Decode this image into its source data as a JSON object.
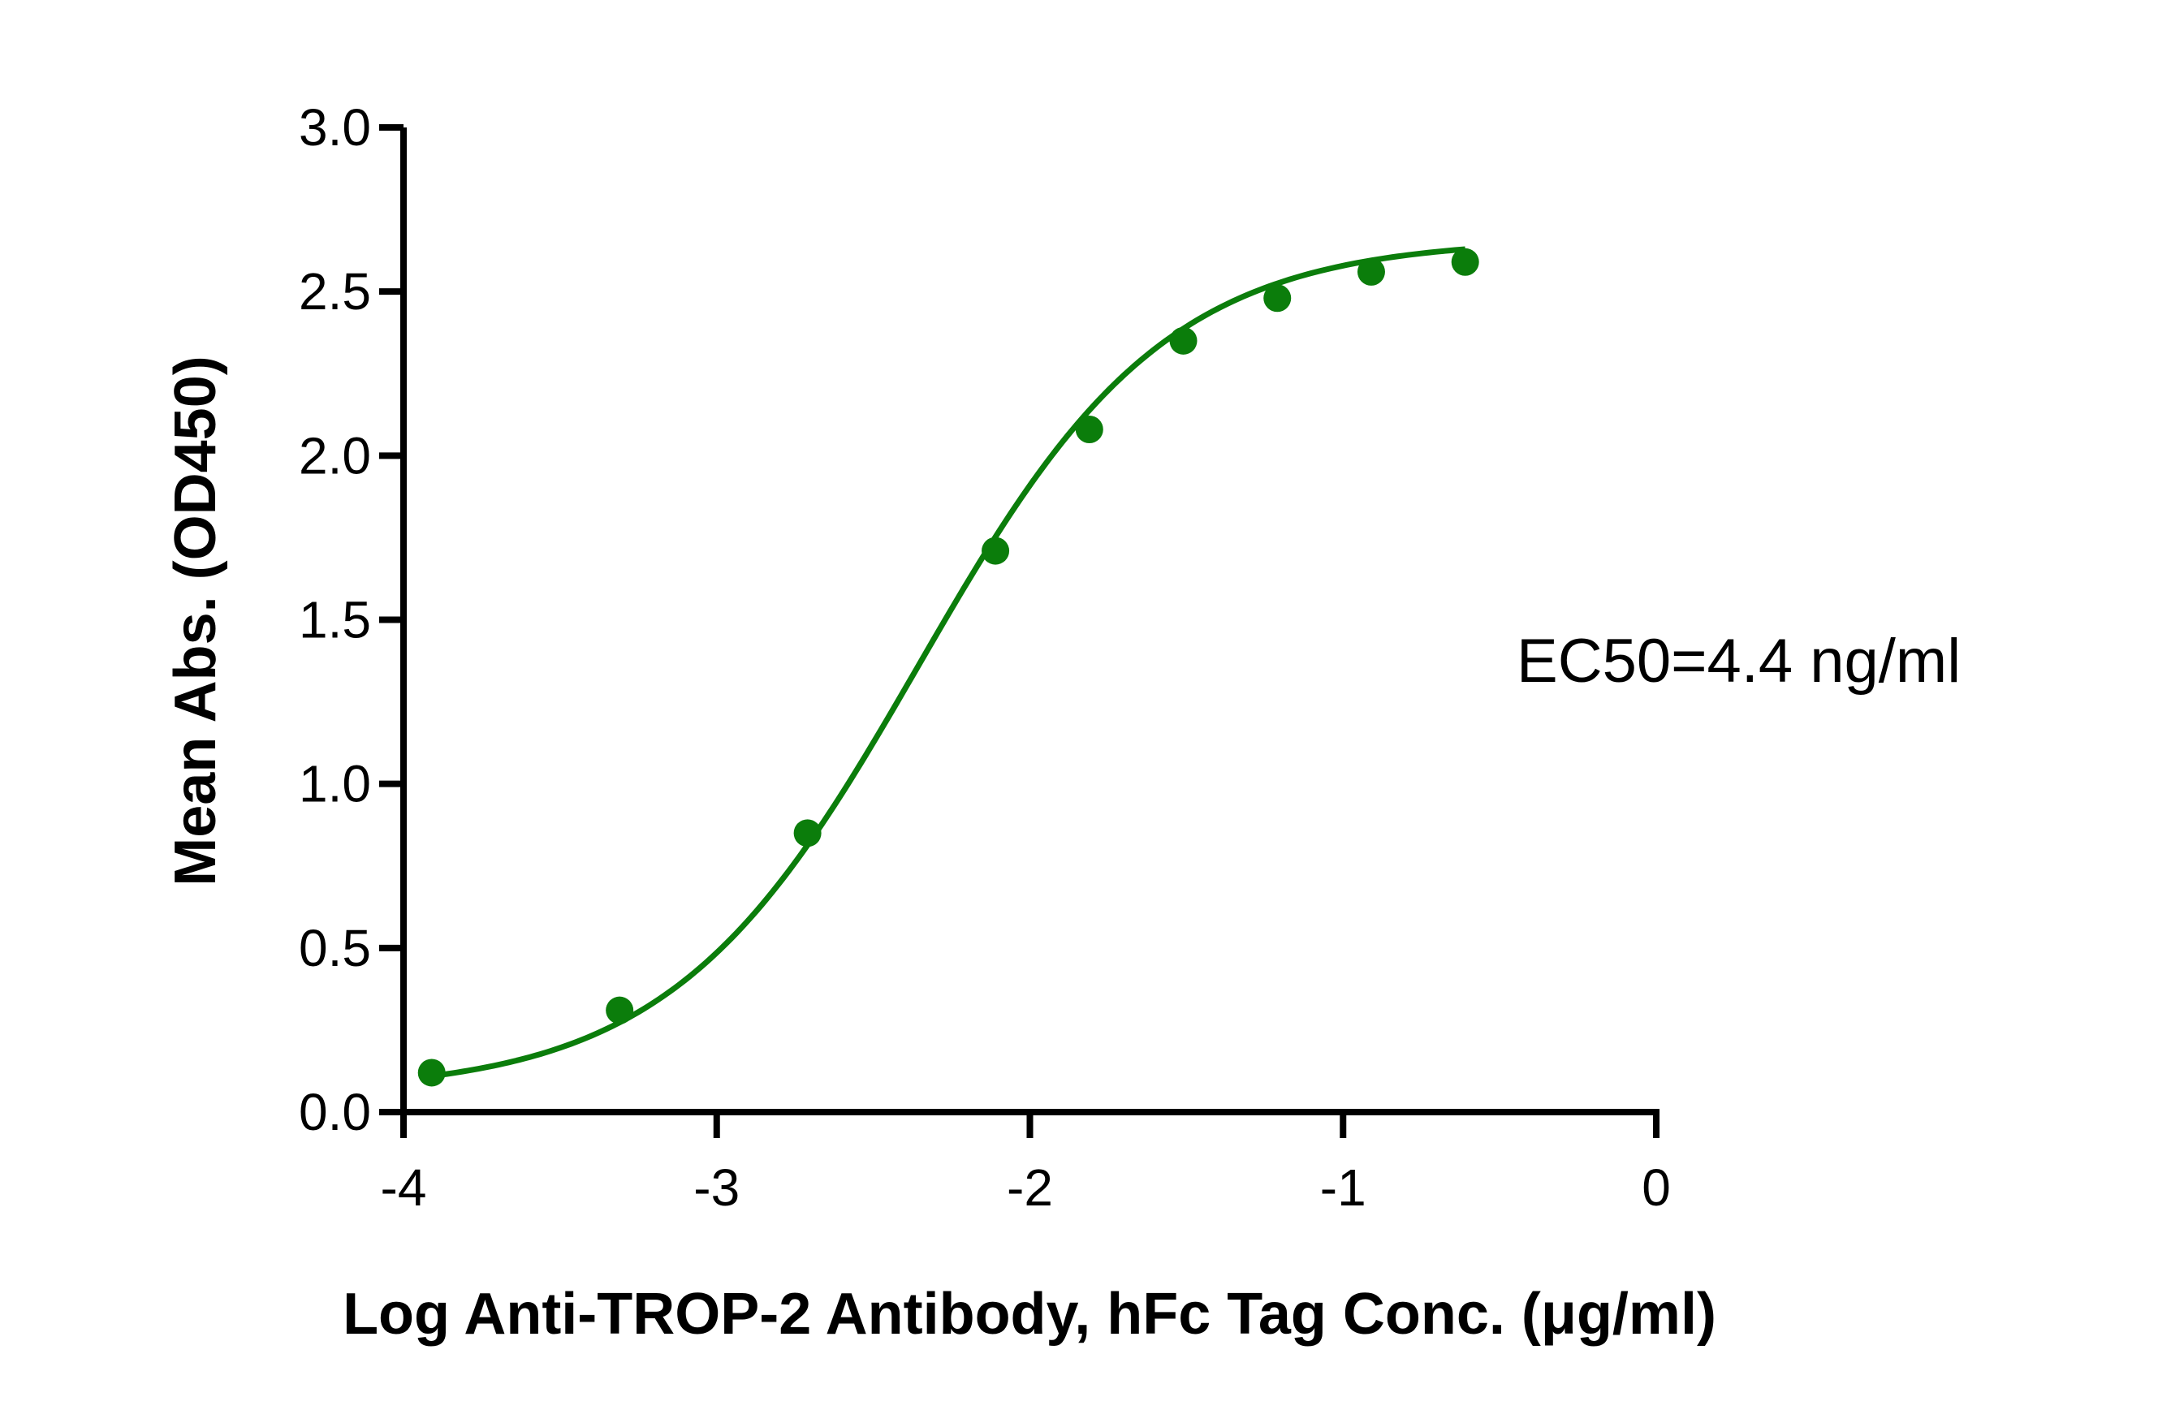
{
  "chart_data": {
    "type": "scatter",
    "xlabel": "Log Anti-TROP-2 Antibody, hFc Tag Conc. (μg/ml)",
    "ylabel": "Mean Abs. (OD450)",
    "xlim": [
      -4,
      0
    ],
    "ylim": [
      0,
      3.0
    ],
    "x_ticks": [
      "-4",
      "-3",
      "-2",
      "-1",
      "0"
    ],
    "y_ticks": [
      "0.0",
      "0.5",
      "1.0",
      "1.5",
      "2.0",
      "2.5",
      "3.0"
    ],
    "grid": false,
    "color": "#0b7d0b",
    "annotation": "EC50=4.4 ng/ml",
    "series": [
      {
        "x": [
          -3.91,
          -3.31,
          -2.71,
          -2.11,
          -1.81,
          -1.51,
          -1.21,
          -0.91,
          -0.61
        ],
        "y": [
          0.12,
          0.31,
          0.85,
          1.71,
          2.08,
          2.35,
          2.48,
          2.56,
          2.59
        ]
      }
    ],
    "fit": {
      "model": "4PL",
      "bottom": 0.06,
      "top": 2.66,
      "logEC50": -2.356,
      "hill": 1.1
    }
  }
}
